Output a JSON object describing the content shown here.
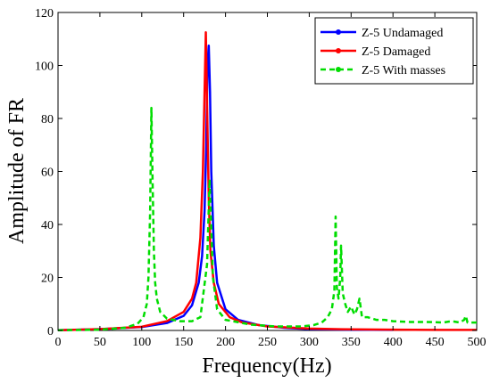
{
  "chart_data": {
    "type": "line",
    "title": "",
    "xlabel": "Frequency(Hz)",
    "ylabel": "Amplitude of FR",
    "xlim": [
      0,
      500
    ],
    "ylim": [
      0,
      120
    ],
    "x_ticks": [
      0,
      50,
      100,
      150,
      200,
      250,
      300,
      350,
      400,
      450,
      500
    ],
    "y_ticks": [
      0,
      20,
      40,
      60,
      80,
      100,
      120
    ],
    "grid": false,
    "legend_position": "top-right",
    "series": [
      {
        "name": "Z-5 Undamaged",
        "color": "#0000ff",
        "line_style": "solid",
        "marker": "dot",
        "x": [
          0,
          50,
          100,
          130,
          150,
          160,
          168,
          172,
          175,
          177,
          178.5,
          180,
          181.5,
          183,
          186,
          190,
          200,
          215,
          240,
          270,
          300,
          350,
          400
        ],
        "y": [
          0.1,
          0.5,
          1.3,
          2.8,
          5.5,
          9.5,
          18,
          28,
          45,
          70,
          100,
          107.5,
          90,
          60,
          32,
          18,
          8,
          4,
          2,
          1,
          0.5,
          0.3,
          0.2
        ]
      },
      {
        "name": "Z-5 Damaged",
        "color": "#ff0000",
        "line_style": "solid",
        "marker": "dot",
        "x": [
          0,
          50,
          100,
          130,
          150,
          160,
          165,
          170,
          173,
          175,
          176.5,
          178,
          180,
          182,
          186,
          192,
          205,
          220,
          250,
          300,
          350,
          400,
          450,
          500
        ],
        "y": [
          0.1,
          0.5,
          1.4,
          3.5,
          7,
          12,
          18,
          35,
          60,
          90,
          112.5,
          85,
          50,
          30,
          18,
          10,
          5,
          3,
          1.5,
          0.7,
          0.4,
          0.3,
          0.2,
          0.2
        ]
      },
      {
        "name": "Z-5 With masses",
        "color": "#00dd00",
        "line_style": "dashed",
        "marker": "dot",
        "x": [
          0,
          50,
          80,
          95,
          102,
          106,
          108,
          110,
          111.5,
          113,
          114.5,
          116,
          118,
          122,
          130,
          145,
          160,
          170,
          178,
          181,
          185,
          190,
          200,
          230,
          260,
          290,
          305,
          315,
          322,
          327,
          330,
          331.5,
          333,
          335,
          337,
          338,
          340,
          343,
          346,
          350,
          354,
          357,
          360,
          363,
          370,
          380,
          390,
          400,
          420,
          440,
          460,
          470,
          480,
          485,
          487,
          489,
          492,
          495,
          500
        ],
        "y": [
          0.1,
          0.3,
          1.0,
          2.5,
          5,
          10,
          20,
          45,
          84,
          55,
          30,
          18,
          12,
          7,
          4.5,
          3.5,
          3.5,
          5,
          25,
          57,
          20,
          8,
          4,
          2.2,
          1.5,
          1.5,
          2,
          3,
          5,
          8,
          15,
          43,
          16,
          12,
          20,
          32,
          14,
          10,
          7,
          9,
          6,
          8,
          12,
          5,
          5,
          4,
          4,
          3.5,
          3.2,
          3.2,
          3,
          3.5,
          3,
          4,
          5.5,
          3,
          3,
          3,
          3
        ]
      }
    ]
  }
}
